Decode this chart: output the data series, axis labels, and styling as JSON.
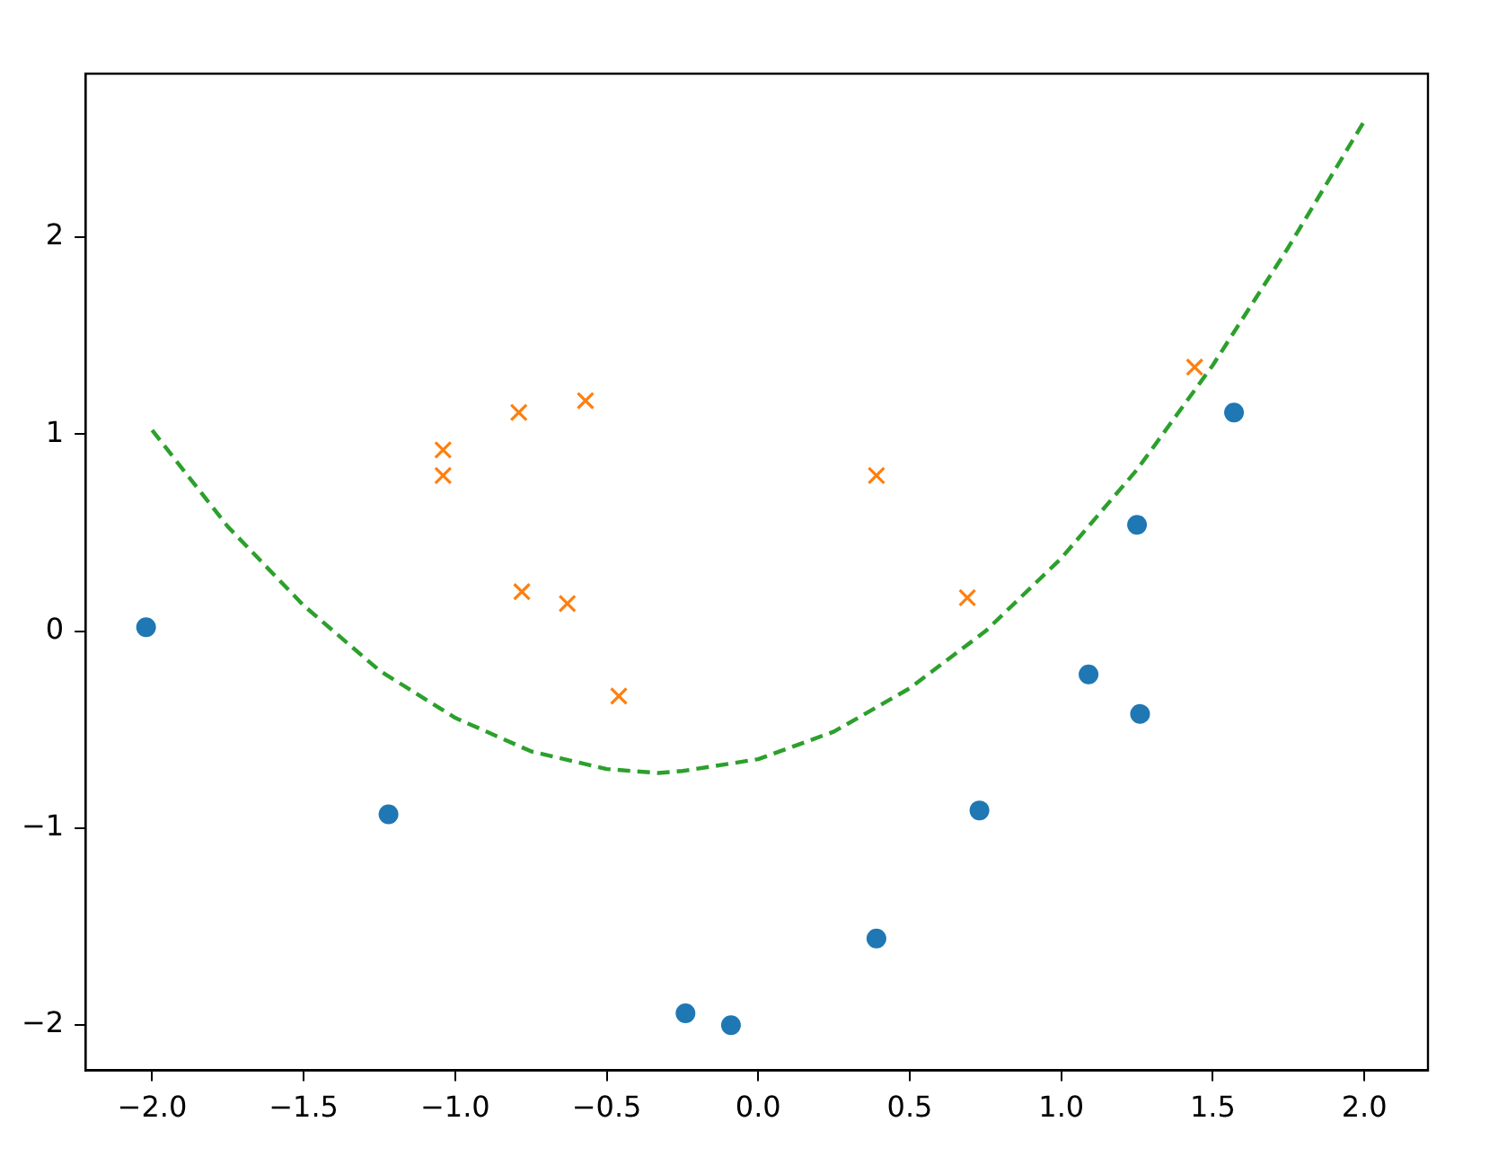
{
  "chart_data": {
    "type": "scatter",
    "grid": false,
    "legend": false,
    "xlim": [
      -2.22,
      2.21
    ],
    "ylim": [
      -2.23,
      2.83
    ],
    "xticks": [
      {
        "value": -2,
        "label": "−2.0"
      },
      {
        "value": -1.5,
        "label": "−1.5"
      },
      {
        "value": -1,
        "label": "−1.0"
      },
      {
        "value": -0.5,
        "label": "−0.5"
      },
      {
        "value": 0,
        "label": "0.0"
      },
      {
        "value": 0.5,
        "label": "0.5"
      },
      {
        "value": 1,
        "label": "1.0"
      },
      {
        "value": 1.5,
        "label": "1.5"
      },
      {
        "value": 2,
        "label": "2.0"
      }
    ],
    "yticks": [
      {
        "value": -2,
        "label": "−2"
      },
      {
        "value": -1,
        "label": "−1"
      },
      0,
      1,
      2
    ],
    "series": [
      {
        "type": "scatter",
        "marker": "circle",
        "color": "#1f77b4",
        "x": [
          -2.02,
          -1.22,
          -0.24,
          -0.09,
          0.39,
          0.73,
          1.09,
          1.25,
          1.26,
          1.57
        ],
        "values": [
          0.02,
          -0.93,
          -1.94,
          -2.0,
          -1.56,
          -0.91,
          -0.22,
          0.54,
          -0.42,
          1.11
        ]
      },
      {
        "type": "scatter",
        "marker": "cross",
        "color": "#ff7f0e",
        "x": [
          -1.04,
          -1.04,
          -0.79,
          -0.57,
          -0.78,
          -0.63,
          -0.46,
          0.39,
          0.69,
          1.44
        ],
        "values": [
          0.92,
          0.79,
          1.11,
          1.17,
          0.2,
          0.14,
          -0.33,
          0.79,
          0.17,
          1.34
        ]
      },
      {
        "type": "line",
        "marker": "none",
        "line_style": "dashed",
        "color": "#2ca02c",
        "x": [
          -2,
          -1.75,
          -1.5,
          -1.25,
          -1,
          -0.75,
          -0.5,
          -0.33,
          -0.25,
          0,
          0.25,
          0.5,
          0.75,
          1,
          1.25,
          1.5,
          1.75,
          2
        ],
        "values": [
          1.02,
          0.53,
          0.13,
          -0.2,
          -0.44,
          -0.61,
          -0.7,
          -0.72,
          -0.71,
          -0.65,
          -0.51,
          -0.29,
          0.0,
          0.37,
          0.82,
          1.35,
          1.95,
          2.59
        ]
      }
    ]
  }
}
